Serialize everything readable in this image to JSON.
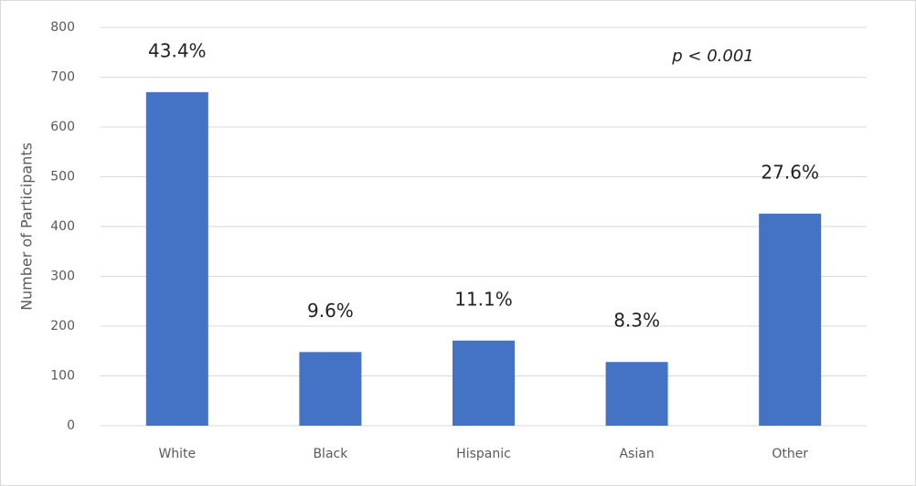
{
  "chart_data": {
    "type": "bar",
    "y_axis_label": "Number of Participants",
    "annotation": "p < 0.001",
    "categories": [
      "White",
      "Black",
      "Hispanic",
      "Asian",
      "Other"
    ],
    "values": [
      670,
      148,
      171,
      128,
      426
    ],
    "data_labels": [
      "43.4%",
      "9.6%",
      "11.1%",
      "8.3%",
      "27.6%"
    ],
    "color": "#4472c4",
    "ylim": [
      0,
      800
    ],
    "yticks": [
      0,
      100,
      200,
      300,
      400,
      500,
      600,
      700,
      800
    ],
    "grid": true
  }
}
